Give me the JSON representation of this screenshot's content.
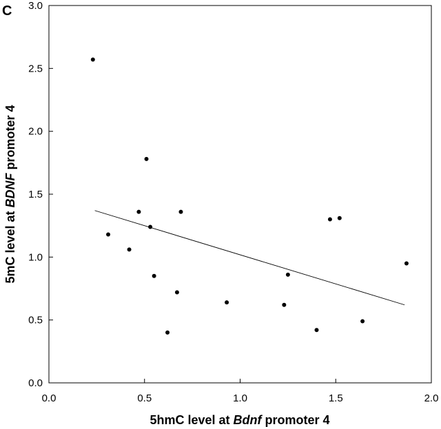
{
  "panel_label": "C",
  "chart_data": {
    "type": "scatter",
    "title": "",
    "xlabel_parts": [
      {
        "text": "5hmC level at ",
        "italic": false
      },
      {
        "text": "Bdnf",
        "italic": true
      },
      {
        "text": " promoter 4",
        "italic": false
      }
    ],
    "ylabel_parts": [
      {
        "text": "5mC level at ",
        "italic": false
      },
      {
        "text": "BDNF",
        "italic": true
      },
      {
        "text": " promoter 4",
        "italic": false
      }
    ],
    "xlim": [
      0.0,
      2.0
    ],
    "ylim": [
      0.0,
      3.0
    ],
    "xticks": [
      "0.0",
      "0.5",
      "1.0",
      "1.5",
      "2.0"
    ],
    "yticks": [
      "0.0",
      "0.5",
      "1.0",
      "1.5",
      "2.0",
      "2.5",
      "3.0"
    ],
    "grid": false,
    "legend": "none",
    "point_color": "#000000",
    "points": [
      {
        "x": 0.23,
        "y": 2.57
      },
      {
        "x": 0.31,
        "y": 1.18
      },
      {
        "x": 0.42,
        "y": 1.06
      },
      {
        "x": 0.47,
        "y": 1.36
      },
      {
        "x": 0.51,
        "y": 1.78
      },
      {
        "x": 0.53,
        "y": 1.24
      },
      {
        "x": 0.55,
        "y": 0.85
      },
      {
        "x": 0.62,
        "y": 0.4
      },
      {
        "x": 0.67,
        "y": 0.72
      },
      {
        "x": 0.69,
        "y": 1.36
      },
      {
        "x": 0.93,
        "y": 0.64
      },
      {
        "x": 1.23,
        "y": 0.62
      },
      {
        "x": 1.25,
        "y": 0.86
      },
      {
        "x": 1.4,
        "y": 0.42
      },
      {
        "x": 1.47,
        "y": 1.3
      },
      {
        "x": 1.52,
        "y": 1.31
      },
      {
        "x": 1.64,
        "y": 0.49
      },
      {
        "x": 1.87,
        "y": 0.95
      }
    ],
    "trend_line": {
      "x": [
        0.24,
        1.86
      ],
      "y": [
        1.37,
        0.62
      ],
      "color": "#000000"
    }
  }
}
